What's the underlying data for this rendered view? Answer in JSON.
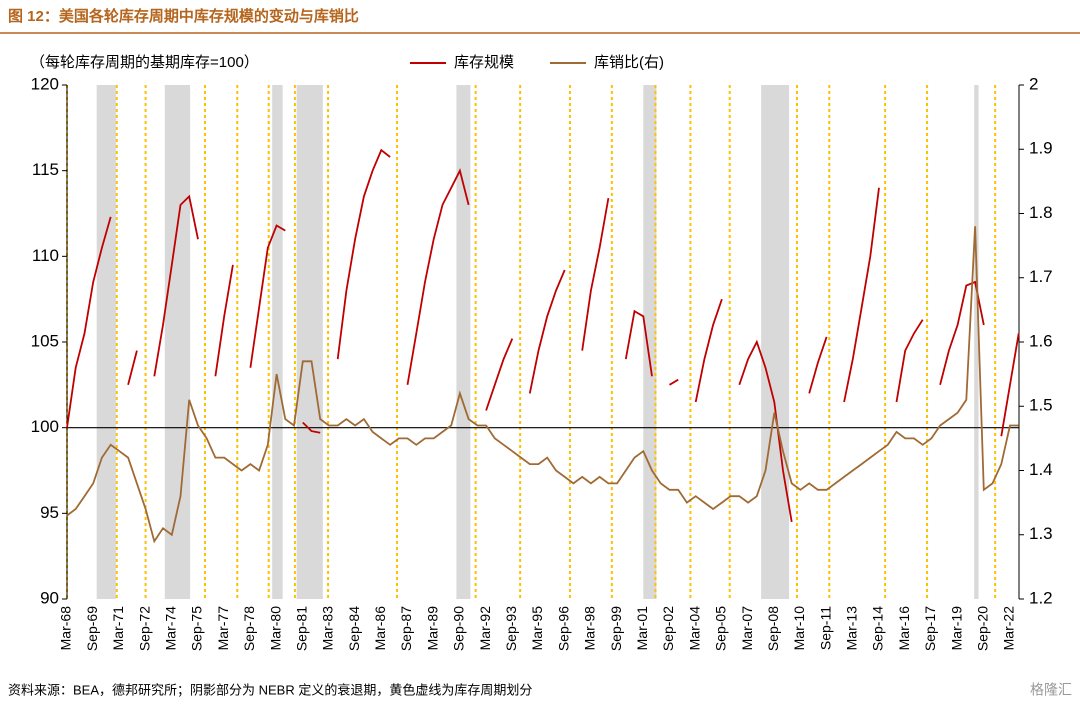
{
  "chart_data": {
    "type": "line",
    "title": "图 12：美国各轮库存周期中库存规模的变动与库销比",
    "annotation": "（每轮库存周期的基期库存=100）",
    "source": "资料来源：BEA，德邦研究所；阴影部分为 NEBR 定义的衰退期，黄色虚线为库存周期划分",
    "watermark": "格隆汇",
    "categories": [
      "Mar-68",
      null,
      null,
      "Sep-69",
      null,
      null,
      "Mar-71",
      null,
      null,
      "Sep-72",
      null,
      null,
      "Mar-74",
      null,
      null,
      "Sep-75",
      null,
      null,
      "Mar-77",
      null,
      null,
      "Sep-78",
      null,
      null,
      "Mar-80",
      null,
      null,
      "Sep-81",
      null,
      null,
      "Mar-83",
      null,
      null,
      "Sep-84",
      null,
      null,
      "Mar-86",
      null,
      null,
      "Sep-87",
      null,
      null,
      "Mar-89",
      null,
      null,
      "Sep-90",
      null,
      null,
      "Mar-92",
      null,
      null,
      "Sep-93",
      null,
      null,
      "Mar-95",
      null,
      null,
      "Sep-96",
      null,
      null,
      "Mar-98",
      null,
      null,
      "Sep-99",
      null,
      null,
      "Mar-01",
      null,
      null,
      "Sep-02",
      null,
      null,
      "Mar-04",
      null,
      null,
      "Sep-05",
      null,
      null,
      "Mar-07",
      null,
      null,
      "Sep-08",
      null,
      null,
      "Mar-10",
      null,
      null,
      "Sep-11",
      null,
      null,
      "Mar-13",
      null,
      null,
      "Sep-14",
      null,
      null,
      "Mar-16",
      null,
      null,
      "Sep-17",
      null,
      null,
      "Mar-19",
      null,
      null,
      "Sep-20",
      null,
      null,
      "Mar-22",
      null
    ],
    "series": [
      {
        "name": "库存规模",
        "color": "#c00000",
        "axis": "y",
        "values": [
          100,
          103.5,
          105.5,
          108.5,
          110.5,
          112.3,
          null,
          102.5,
          104.5,
          null,
          103,
          106,
          109.5,
          113,
          113.5,
          111,
          null,
          103,
          106.5,
          109.5,
          null,
          103.5,
          107,
          110.5,
          111.8,
          111.5,
          null,
          100.3,
          99.8,
          99.7,
          null,
          104,
          108,
          111,
          113.5,
          115,
          116.2,
          115.8,
          null,
          102.5,
          105.5,
          108.5,
          111,
          113,
          114,
          115,
          113,
          null,
          101,
          102.5,
          104,
          105.2,
          null,
          102,
          104.5,
          106.5,
          108,
          109.2,
          null,
          104.5,
          108,
          110.5,
          113.4,
          null,
          104,
          106.8,
          106.5,
          103,
          null,
          102.5,
          102.8,
          null,
          101.5,
          104,
          106,
          107.5,
          null,
          102.5,
          104,
          105,
          103.5,
          101.5,
          97.5,
          94.5,
          null,
          102,
          103.8,
          105.3,
          null,
          101.5,
          104,
          107,
          110,
          114,
          null,
          101.5,
          104.5,
          105.5,
          106.3,
          null,
          102.5,
          104.5,
          106,
          108.3,
          108.5,
          106,
          null,
          99.5,
          102.5,
          105.5
        ]
      },
      {
        "name": "库销比(右)",
        "color": "#a06a35",
        "axis": "y2",
        "values": [
          1.33,
          1.34,
          1.36,
          1.38,
          1.42,
          1.44,
          1.43,
          1.42,
          1.38,
          1.34,
          1.29,
          1.31,
          1.3,
          1.36,
          1.51,
          1.47,
          1.45,
          1.42,
          1.42,
          1.41,
          1.4,
          1.41,
          1.4,
          1.44,
          1.55,
          1.48,
          1.47,
          1.57,
          1.57,
          1.48,
          1.47,
          1.47,
          1.48,
          1.47,
          1.48,
          1.46,
          1.45,
          1.44,
          1.45,
          1.45,
          1.44,
          1.45,
          1.45,
          1.46,
          1.47,
          1.52,
          1.48,
          1.47,
          1.47,
          1.45,
          1.44,
          1.43,
          1.42,
          1.41,
          1.41,
          1.42,
          1.4,
          1.39,
          1.38,
          1.39,
          1.38,
          1.39,
          1.38,
          1.38,
          1.4,
          1.42,
          1.43,
          1.4,
          1.38,
          1.37,
          1.37,
          1.35,
          1.36,
          1.35,
          1.34,
          1.35,
          1.36,
          1.36,
          1.35,
          1.36,
          1.4,
          1.49,
          1.43,
          1.38,
          1.37,
          1.38,
          1.37,
          1.37,
          1.38,
          1.39,
          1.4,
          1.41,
          1.42,
          1.43,
          1.44,
          1.46,
          1.45,
          1.45,
          1.44,
          1.45,
          1.47,
          1.48,
          1.49,
          1.51,
          1.78,
          1.37,
          1.38,
          1.41,
          1.47,
          1.47
        ]
      }
    ],
    "ylim": [
      90,
      120
    ],
    "yticks": [
      90,
      95,
      100,
      105,
      110,
      115,
      120
    ],
    "y2lim": [
      1.2,
      2
    ],
    "y2ticks": [
      1.2,
      1.3,
      1.4,
      1.5,
      1.6,
      1.7,
      1.8,
      1.9,
      2
    ],
    "reference_line": 100,
    "recessions": [
      [
        3.4,
        5.6
      ],
      [
        11.2,
        14.1
      ],
      [
        23.5,
        24.7
      ],
      [
        26.3,
        29.3
      ],
      [
        44.6,
        46.2
      ],
      [
        66,
        67.5
      ],
      [
        79.5,
        82.7
      ],
      [
        103.9,
        104.4
      ]
    ],
    "cycle_dividers": [
      0,
      5.7,
      9.0,
      15.8,
      19.5,
      23.1,
      26.1,
      29.9,
      37.8,
      46.8,
      51.9,
      57.6,
      62.4,
      67.4,
      71.4,
      75.9,
      83.6,
      87.3,
      93.7,
      98.5,
      106.3
    ],
    "legend": "top"
  }
}
